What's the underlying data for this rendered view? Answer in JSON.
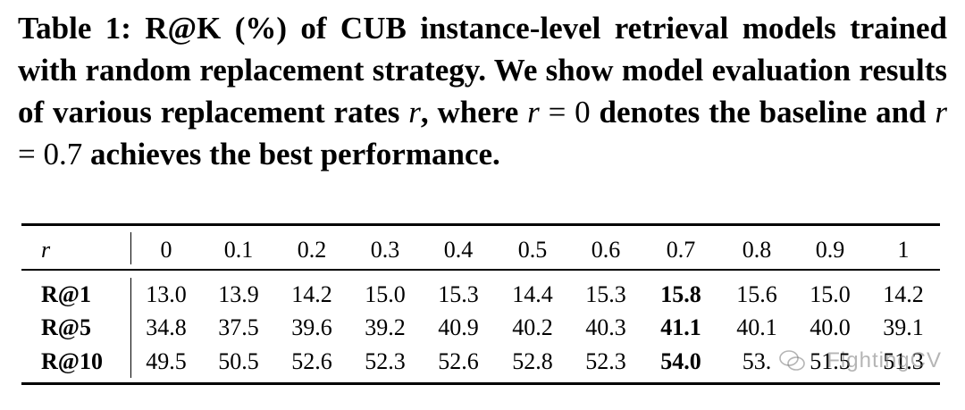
{
  "caption": {
    "p1": "Table 1: R@K (%) of CUB instance-level retrieval models trained with random replacement strategy. We show model evaluation results of various replacement rates ",
    "r1": "r",
    "p2": ", where ",
    "r2": "r",
    "eq1": " = 0",
    "p3": " denotes the baseline and ",
    "r3": "r",
    "eq2": " = 0.7",
    "p4": " achieves the best performance."
  },
  "table": {
    "header_label": "r",
    "columns": [
      "0",
      "0.1",
      "0.2",
      "0.3",
      "0.4",
      "0.5",
      "0.6",
      "0.7",
      "0.8",
      "0.9",
      "1"
    ],
    "best_column_index": 7,
    "rows": [
      {
        "label": "R@1",
        "values": [
          "13.0",
          "13.9",
          "14.2",
          "15.0",
          "15.3",
          "14.4",
          "15.3",
          "15.8",
          "15.6",
          "15.0",
          "14.2"
        ]
      },
      {
        "label": "R@5",
        "values": [
          "34.8",
          "37.5",
          "39.6",
          "39.2",
          "40.9",
          "40.2",
          "40.3",
          "41.1",
          "40.1",
          "40.0",
          "39.1"
        ]
      },
      {
        "label": "R@10",
        "values": [
          "49.5",
          "50.5",
          "52.6",
          "52.3",
          "52.6",
          "52.8",
          "52.3",
          "54.0",
          "53.",
          "51.5",
          "51.3"
        ]
      }
    ]
  },
  "watermark": {
    "text": "FightingCV",
    "icon": "wechat-icon"
  }
}
